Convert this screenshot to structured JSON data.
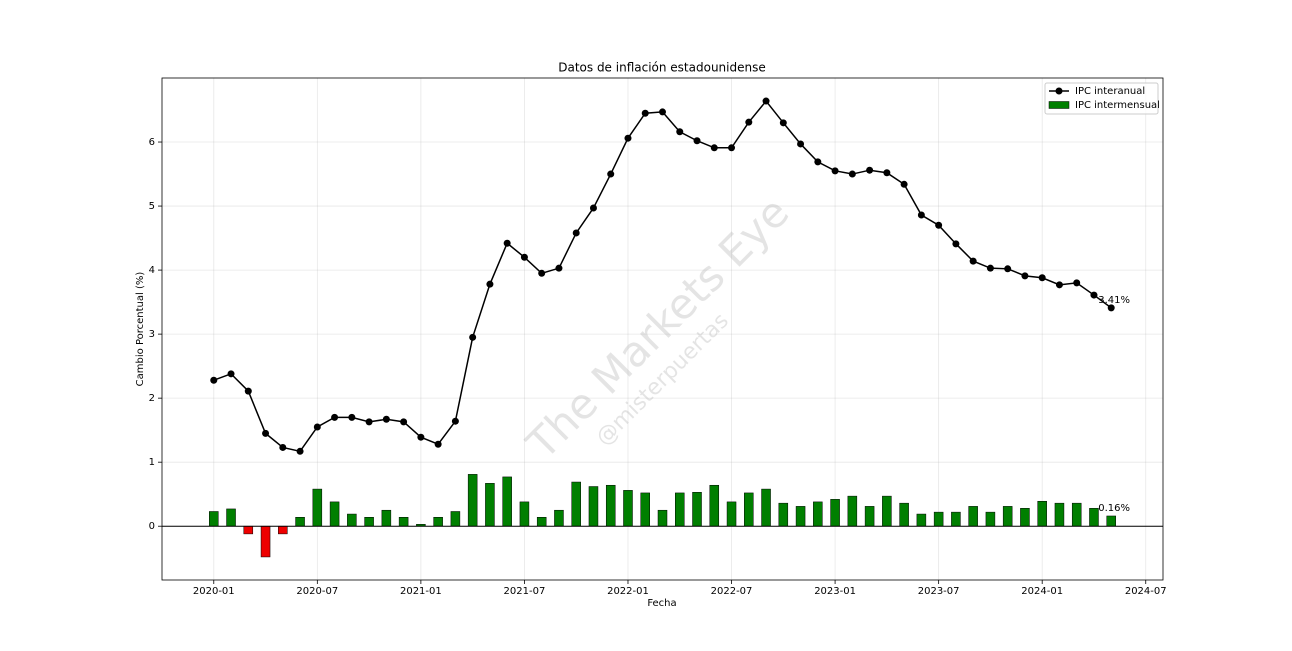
{
  "chart_data": {
    "type": "combo",
    "title": "Datos de inflación estadounidense",
    "x_label": "Fecha",
    "y_label": "Cambio Porcentual (%)",
    "watermark": "The Markets Eye",
    "watermark_sub": "@misterpuertas",
    "x": [
      "2020-01",
      "2020-02",
      "2020-03",
      "2020-04",
      "2020-05",
      "2020-06",
      "2020-07",
      "2020-08",
      "2020-09",
      "2020-10",
      "2020-11",
      "2020-12",
      "2021-01",
      "2021-02",
      "2021-03",
      "2021-04",
      "2021-05",
      "2021-06",
      "2021-07",
      "2021-08",
      "2021-09",
      "2021-10",
      "2021-11",
      "2021-12",
      "2022-01",
      "2022-02",
      "2022-03",
      "2022-04",
      "2022-05",
      "2022-06",
      "2022-07",
      "2022-08",
      "2022-09",
      "2022-10",
      "2022-11",
      "2022-12",
      "2023-01",
      "2023-02",
      "2023-03",
      "2023-04",
      "2023-05",
      "2023-06",
      "2023-07",
      "2023-08",
      "2023-09",
      "2023-10",
      "2023-11",
      "2023-12",
      "2024-01",
      "2024-02",
      "2024-03",
      "2024-04",
      "2024-05"
    ],
    "series": [
      {
        "name": "IPC interanual",
        "type": "line",
        "color": "#000000",
        "values": [
          2.28,
          2.38,
          2.11,
          1.45,
          1.23,
          1.17,
          1.55,
          1.7,
          1.7,
          1.63,
          1.67,
          1.63,
          1.39,
          1.28,
          1.64,
          2.95,
          3.78,
          4.42,
          4.2,
          3.95,
          4.03,
          4.58,
          4.97,
          5.5,
          6.06,
          6.45,
          6.47,
          6.16,
          6.02,
          5.91,
          5.91,
          6.31,
          6.64,
          6.3,
          5.97,
          5.69,
          5.55,
          5.5,
          5.56,
          5.52,
          5.34,
          4.86,
          4.7,
          4.41,
          4.14,
          4.03,
          4.02,
          3.91,
          3.88,
          3.77,
          3.8,
          3.61,
          3.41
        ],
        "value_labels": [
          null,
          null,
          null,
          null,
          null,
          null,
          null,
          null,
          null,
          null,
          null,
          null,
          null,
          null,
          null,
          null,
          null,
          null,
          null,
          null,
          null,
          null,
          null,
          null,
          null,
          null,
          null,
          null,
          null,
          null,
          null,
          null,
          null,
          null,
          null,
          null,
          null,
          null,
          null,
          null,
          null,
          null,
          null,
          null,
          null,
          null,
          null,
          null,
          null,
          null,
          null,
          null,
          "3.41%"
        ]
      },
      {
        "name": "IPC intermensual",
        "type": "bar",
        "color": "#007f00",
        "negative_color": "#ee0000",
        "values": [
          0.23,
          0.27,
          -0.12,
          -0.48,
          -0.12,
          0.14,
          0.58,
          0.38,
          0.19,
          0.14,
          0.25,
          0.14,
          0.03,
          0.14,
          0.23,
          0.81,
          0.67,
          0.77,
          0.38,
          0.14,
          0.25,
          0.69,
          0.62,
          0.64,
          0.56,
          0.52,
          0.25,
          0.52,
          0.53,
          0.64,
          0.38,
          0.52,
          0.58,
          0.36,
          0.31,
          0.38,
          0.42,
          0.47,
          0.31,
          0.47,
          0.36,
          0.19,
          0.22,
          0.22,
          0.31,
          0.22,
          0.31,
          0.28,
          0.39,
          0.36,
          0.36,
          0.28,
          0.16
        ],
        "value_labels": [
          null,
          null,
          null,
          null,
          null,
          null,
          null,
          null,
          null,
          null,
          null,
          null,
          null,
          null,
          null,
          null,
          null,
          null,
          null,
          null,
          null,
          null,
          null,
          null,
          null,
          null,
          null,
          null,
          null,
          null,
          null,
          null,
          null,
          null,
          null,
          null,
          null,
          null,
          null,
          null,
          null,
          null,
          null,
          null,
          null,
          null,
          null,
          null,
          null,
          null,
          null,
          null,
          "0.16%"
        ]
      }
    ],
    "xlim": [
      "2019-10",
      "2024-08"
    ],
    "xticks": [
      "2020-01",
      "2020-07",
      "2021-01",
      "2021-07",
      "2022-01",
      "2022-07",
      "2023-01",
      "2023-07",
      "2024-01",
      "2024-07"
    ],
    "ylim": [
      -0.84,
      7.0
    ],
    "yticks": [
      0,
      1,
      2,
      3,
      4,
      5,
      6
    ],
    "grid": true,
    "legend": "upper right"
  }
}
